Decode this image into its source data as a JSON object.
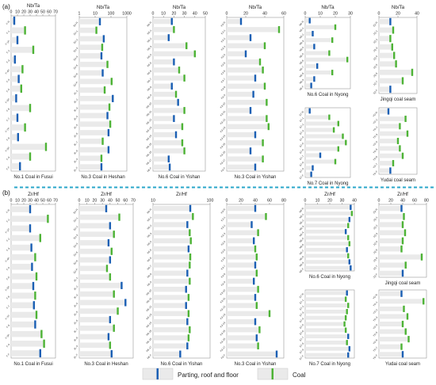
{
  "panel_labels": [
    "(a)",
    "(b)"
  ],
  "legend": {
    "parting_label": "Parting, roof and floor",
    "coal_label": "Coal",
    "parting_color": "#1a5fb4",
    "coal_color": "#4db335",
    "bar_fill": "#eaeaea"
  },
  "chart_data": [
    {
      "type": "bar",
      "id": "a1",
      "title": "Nb/Ta",
      "xlim": [
        0,
        70
      ],
      "ticks": [
        "0",
        "10",
        "20",
        "30",
        "40",
        "50",
        "60",
        "70"
      ],
      "caption": "No.1 Coal in Fusui",
      "rows": [
        "F-R",
        "F-1",
        "F-1P",
        "F-2",
        "F-3",
        "F-4P",
        "F-4",
        "F-5",
        "F-5P",
        "F-6",
        "F-7",
        "F-7P",
        "F-8",
        "F-9P",
        "F-9",
        "F-F"
      ],
      "kinds": [
        "p",
        "c",
        "p",
        "c",
        "p",
        "c",
        "p",
        "c",
        "p",
        "c",
        "p",
        "c",
        "p",
        "c",
        "c",
        "p"
      ],
      "values": [
        5,
        22,
        10,
        35,
        6,
        18,
        12,
        16,
        8,
        30,
        10,
        22,
        11,
        55,
        30,
        14
      ]
    },
    {
      "type": "bar",
      "id": "a2",
      "title": "Nb/Ta",
      "xlim": [
        1,
        1000
      ],
      "scale": "log",
      "ticks": [
        "1",
        "10",
        "100",
        "1000"
      ],
      "caption": "No.3 Coal in Heshan",
      "rows": [
        "3U-R",
        "3U-1",
        "3U-2",
        "3U-3",
        "3U-4",
        "3U-5",
        "3U-6",
        "3U-P",
        "3L-1",
        "3L-2",
        "3L-3",
        "3L-4",
        "3L-5",
        "3L-6",
        "3L-7",
        "3L-8",
        "3L-9",
        "3L-F"
      ],
      "kinds": [
        "p",
        "c",
        "p",
        "c",
        "p",
        "c",
        "p",
        "c",
        "c",
        "p",
        "c",
        "p",
        "c",
        "p",
        "c",
        "p",
        "c",
        "p"
      ],
      "values": [
        20,
        12,
        35,
        28,
        25,
        60,
        30,
        110,
        40,
        130,
        80,
        60,
        90,
        70,
        30,
        70,
        25,
        25
      ]
    },
    {
      "type": "bar",
      "id": "a3",
      "title": "Nb/Ta",
      "xlim": [
        0,
        50
      ],
      "ticks": [
        "0",
        "10",
        "20",
        "30",
        "40",
        "50"
      ],
      "caption": "No.6 Coal in Yishan",
      "rows": [
        "R6-R",
        "R6-1",
        "R6-2",
        "R6-3",
        "R6-4",
        "R6-5",
        "R6-6",
        "R6-7",
        "R6-8",
        "R6-9",
        "R6-10",
        "R6-11",
        "R6-12",
        "R6-13",
        "R6-14",
        "R6-15",
        "R6-16",
        "R6-17",
        "R6-F"
      ],
      "kinds": [
        "p",
        "c",
        "p",
        "c",
        "c",
        "p",
        "c",
        "c",
        "p",
        "c",
        "p",
        "c",
        "p",
        "c",
        "p",
        "c",
        "c",
        "p",
        "p"
      ],
      "values": [
        18,
        20,
        15,
        32,
        40,
        20,
        25,
        30,
        18,
        22,
        24,
        30,
        20,
        28,
        22,
        28,
        30,
        15,
        16
      ]
    },
    {
      "type": "bar",
      "id": "a4",
      "title": "Nb/Ta",
      "xlim": [
        0,
        60
      ],
      "ticks": [
        "0",
        "20",
        "40",
        "60"
      ],
      "caption": "No.3 Coal in Yishan",
      "rows": [
        "K3-R",
        "K3-1",
        "K3-2",
        "K3-3",
        "K3-4",
        "K3-5",
        "K3-6",
        "K3-7",
        "K3-8",
        "K3-9",
        "K3-10",
        "K3-11",
        "K3-12",
        "K3-13",
        "K3-14",
        "K3-15",
        "K3-16",
        "K3-17",
        "K3-F"
      ],
      "kinds": [
        "p",
        "c",
        "p",
        "c",
        "p",
        "c",
        "c",
        "p",
        "c",
        "p",
        "c",
        "p",
        "c",
        "c",
        "p",
        "c",
        "p",
        "c",
        "p"
      ],
      "values": [
        15,
        55,
        25,
        40,
        20,
        35,
        38,
        30,
        40,
        28,
        42,
        25,
        42,
        44,
        30,
        38,
        25,
        38,
        30
      ]
    },
    {
      "type": "bar",
      "id": "a5",
      "title": "Nb/Ta",
      "xlim": [
        0,
        30
      ],
      "ticks": [
        "0",
        "10",
        "20",
        "30"
      ],
      "caption": "No.6 Coal in Nyong",
      "rows": [
        "N6-R",
        "N6-1",
        "N6-2",
        "N6-3",
        "N6-4",
        "N6-5",
        "N6-6",
        "N6-7",
        "N6-8",
        "N6-9",
        "N6-F"
      ],
      "kinds": [
        "p",
        "c",
        "p",
        "c",
        "p",
        "c",
        "c",
        "p",
        "c",
        "p",
        "p"
      ],
      "values": [
        3,
        20,
        5,
        18,
        6,
        16,
        28,
        8,
        18,
        6,
        4
      ]
    },
    {
      "type": "bar",
      "id": "a6",
      "title": "Nb/Ta",
      "xlim": [
        0,
        40
      ],
      "ticks": [
        "0",
        "20",
        "40"
      ],
      "caption": "Jingqi coal seam",
      "rows": [
        "JQ-R",
        "JQ-1",
        "JQ-2",
        "JQ-3",
        "JQ-4",
        "JQ-5",
        "JQ-6",
        "JQ-7",
        "JQ-F"
      ],
      "kinds": [
        "p",
        "c",
        "c",
        "c",
        "c",
        "c",
        "c",
        "c",
        "p"
      ],
      "values": [
        12,
        15,
        12,
        14,
        16,
        18,
        35,
        25,
        12
      ]
    },
    {
      "type": "bar",
      "id": "a7",
      "title": "",
      "xlim": [
        0,
        30
      ],
      "ticks": [],
      "caption": "No.7 Coal in Nyong",
      "rows": [
        "S7-R",
        "S7-1",
        "S7-2",
        "S7-3",
        "S7-4",
        "S7-5",
        "S7-6",
        "S7-7",
        "S7-8",
        "S7-9",
        "S7-F"
      ],
      "kinds": [
        "p",
        "c",
        "c",
        "c",
        "c",
        "c",
        "c",
        "p",
        "c",
        "p",
        "p"
      ],
      "values": [
        3,
        16,
        22,
        19,
        25,
        27,
        22,
        10,
        20,
        5,
        4
      ]
    },
    {
      "type": "bar",
      "id": "a8",
      "title": "",
      "xlim": [
        0,
        40
      ],
      "ticks": [],
      "caption": "Yudai coal seam",
      "rows": [
        "YD-R",
        "YD-1",
        "YD-2",
        "YD-3",
        "YD-4",
        "YD-5",
        "YD-6",
        "YD-7",
        "YD-F"
      ],
      "kinds": [
        "p",
        "c",
        "c",
        "c",
        "c",
        "c",
        "c",
        "c",
        "p"
      ],
      "values": [
        10,
        28,
        22,
        30,
        20,
        22,
        25,
        15,
        12
      ]
    },
    {
      "type": "bar",
      "id": "b1",
      "title": "Zr/Hf",
      "xlim": [
        0,
        70
      ],
      "ticks": [
        "0",
        "10",
        "20",
        "30",
        "40",
        "50",
        "60",
        "70"
      ],
      "caption": "No.1 Coal in Fusui",
      "rows": [
        "F-R",
        "F-1",
        "F-1P",
        "F-2",
        "F-3",
        "F-4P",
        "F-4",
        "F-5",
        "F-5P",
        "F-6",
        "F-7",
        "F-7P",
        "F-8",
        "F-9P",
        "F-9",
        "F-F"
      ],
      "kinds": [
        "p",
        "c",
        "p",
        "c",
        "p",
        "c",
        "p",
        "c",
        "p",
        "c",
        "p",
        "c",
        "p",
        "c",
        "c",
        "p"
      ],
      "values": [
        30,
        58,
        30,
        46,
        32,
        38,
        33,
        40,
        35,
        38,
        36,
        40,
        38,
        48,
        52,
        46
      ]
    },
    {
      "type": "bar",
      "id": "b2",
      "title": "Zr/Hf",
      "xlim": [
        0,
        70
      ],
      "ticks": [
        "0",
        "10",
        "20",
        "30",
        "40",
        "50",
        "60",
        "70"
      ],
      "caption": "No.3 Coal in Heshan",
      "rows": [
        "3U-R",
        "3U-1",
        "3U-2",
        "3U-3",
        "3U-4",
        "3U-5",
        "3U-6",
        "3U-P",
        "3L-1",
        "3L-2",
        "3L-3",
        "3L-4",
        "3L-5",
        "3L-6",
        "3L-7",
        "3L-8",
        "3L-9",
        "3L-F"
      ],
      "kinds": [
        "p",
        "c",
        "p",
        "c",
        "p",
        "c",
        "p",
        "c",
        "c",
        "p",
        "c",
        "p",
        "c",
        "p",
        "c",
        "p",
        "c",
        "p"
      ],
      "values": [
        35,
        52,
        40,
        45,
        38,
        42,
        40,
        36,
        40,
        55,
        45,
        60,
        50,
        40,
        45,
        38,
        40,
        42
      ]
    },
    {
      "type": "bar",
      "id": "b3",
      "title": "Zr/Hf",
      "xlim": [
        10,
        100
      ],
      "scale": "log",
      "ticks": [
        "10",
        "100"
      ],
      "caption": "No.6 Coal in Yishan",
      "rows": [
        "R6-R",
        "R6-1",
        "R6-2",
        "R6-3",
        "R6-4",
        "R6-5",
        "R6-6",
        "R6-7",
        "R6-8",
        "R6-9",
        "R6-10",
        "R6-11",
        "R6-12",
        "R6-13",
        "R6-14",
        "R6-15",
        "R6-16",
        "R6-17",
        "R6-F"
      ],
      "kinds": [
        "p",
        "c",
        "p",
        "c",
        "c",
        "p",
        "c",
        "c",
        "p",
        "c",
        "p",
        "c",
        "p",
        "c",
        "p",
        "c",
        "c",
        "p",
        "p"
      ],
      "values": [
        45,
        50,
        40,
        44,
        46,
        42,
        45,
        44,
        40,
        44,
        38,
        42,
        38,
        42,
        40,
        44,
        42,
        40,
        30
      ]
    },
    {
      "type": "bar",
      "id": "b4",
      "title": "",
      "xlim": [
        0,
        80
      ],
      "ticks": [
        "0",
        "20",
        "40",
        "60",
        "80"
      ],
      "caption": "No.3 Coal in Yishan",
      "rows": [
        "K3-R",
        "K3-1",
        "K3-2",
        "K3-3",
        "K3-4",
        "K3-5",
        "K3-6",
        "K3-7",
        "K3-8",
        "K3-9",
        "K3-10",
        "K3-11",
        "K3-12",
        "K3-13",
        "K3-14",
        "K3-15",
        "K3-16",
        "K3-17",
        "K3-F"
      ],
      "kinds": [
        "p",
        "c",
        "p",
        "c",
        "p",
        "c",
        "c",
        "p",
        "c",
        "p",
        "c",
        "p",
        "c",
        "c",
        "p",
        "c",
        "p",
        "c",
        "p"
      ],
      "values": [
        40,
        55,
        35,
        44,
        38,
        40,
        42,
        40,
        42,
        38,
        44,
        40,
        42,
        60,
        40,
        46,
        42,
        44,
        70
      ]
    },
    {
      "type": "bar",
      "id": "b5",
      "title": "Zr/Hf",
      "xlim": [
        0,
        40
      ],
      "ticks": [
        "0",
        "10",
        "20",
        "30",
        "40"
      ],
      "caption": "No.6 Coal in Nyong",
      "rows": [
        "N6-R",
        "N6-1",
        "N6-2",
        "N6-3",
        "N6-4",
        "N6-5",
        "N6-6",
        "N6-7",
        "N6-8",
        "N6-9",
        "N6-F"
      ],
      "kinds": [
        "p",
        "c",
        "p",
        "c",
        "p",
        "c",
        "c",
        "p",
        "c",
        "p",
        "p"
      ],
      "values": [
        37,
        38,
        36,
        35,
        33,
        35,
        36,
        34,
        35,
        36,
        37
      ]
    },
    {
      "type": "bar",
      "id": "b6",
      "title": "Zr/Hf",
      "xlim": [
        0,
        80
      ],
      "ticks": [
        "0",
        "20",
        "40",
        "60",
        "80"
      ],
      "caption": "Jingqi coal seam",
      "rows": [
        "JQ-R",
        "JQ-1",
        "JQ-2",
        "JQ-3",
        "JQ-4",
        "JQ-5",
        "JQ-6",
        "JQ-7",
        "JQ-F"
      ],
      "kinds": [
        "p",
        "c",
        "c",
        "c",
        "c",
        "c",
        "c",
        "c",
        "p"
      ],
      "values": [
        38,
        42,
        40,
        44,
        40,
        38,
        72,
        45,
        40
      ]
    },
    {
      "type": "bar",
      "id": "b7",
      "title": "",
      "xlim": [
        0,
        40
      ],
      "ticks": [],
      "caption": "No.7 Coal in Nyong",
      "rows": [
        "S7-R",
        "S7-1",
        "S7-2",
        "S7-3",
        "S7-4",
        "S7-5",
        "S7-6",
        "S7-7",
        "S7-8",
        "S7-9",
        "S7-F"
      ],
      "kinds": [
        "p",
        "c",
        "c",
        "c",
        "c",
        "c",
        "c",
        "p",
        "c",
        "p",
        "p"
      ],
      "values": [
        34,
        33,
        35,
        34,
        33,
        32,
        33,
        35,
        34,
        36,
        35
      ]
    },
    {
      "type": "bar",
      "id": "b8",
      "title": "",
      "xlim": [
        0,
        80
      ],
      "ticks": [],
      "caption": "Yudai coal seam",
      "rows": [
        "YD-R",
        "YD-1",
        "YD-2",
        "YD-3",
        "YD-4",
        "YD-5",
        "YD-6",
        "YD-7",
        "YD-F"
      ],
      "kinds": [
        "p",
        "c",
        "c",
        "c",
        "c",
        "c",
        "c",
        "c",
        "p"
      ],
      "values": [
        38,
        75,
        42,
        48,
        40,
        45,
        50,
        38,
        40
      ]
    }
  ]
}
